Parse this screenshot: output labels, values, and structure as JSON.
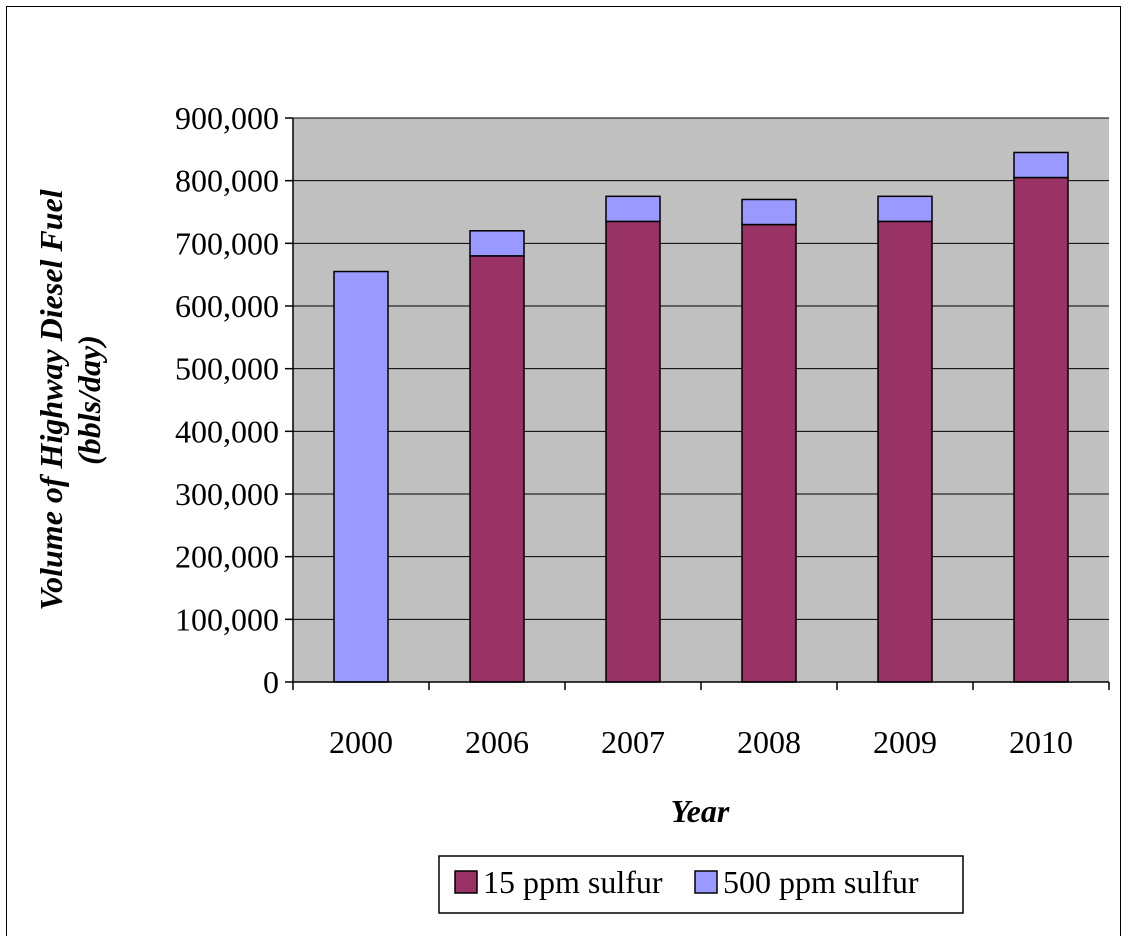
{
  "chart_data": {
    "type": "bar",
    "stacked": true,
    "title": "",
    "xlabel": "Year",
    "ylabel": [
      "Volume of Highway Diesel Fuel",
      "(bbls/day)"
    ],
    "categories": [
      "2000",
      "2006",
      "2007",
      "2008",
      "2009",
      "2010"
    ],
    "series": [
      {
        "name": "15 ppm sulfur",
        "color": "#993366",
        "values": [
          0,
          680000,
          735000,
          730000,
          735000,
          805000
        ]
      },
      {
        "name": "500 ppm sulfur",
        "color": "#9999ff",
        "values": [
          655000,
          40000,
          40000,
          40000,
          40000,
          40000
        ]
      }
    ],
    "ylim": [
      0,
      900000
    ],
    "yticks": [
      0,
      100000,
      200000,
      300000,
      400000,
      500000,
      600000,
      700000,
      800000,
      900000
    ],
    "ytick_labels": [
      "0",
      "100,000",
      "200,000",
      "300,000",
      "400,000",
      "500,000",
      "600,000",
      "700,000",
      "800,000",
      "900,000"
    ],
    "grid": true,
    "plot_background": "#c0c0c0",
    "legend_position": "bottom"
  }
}
